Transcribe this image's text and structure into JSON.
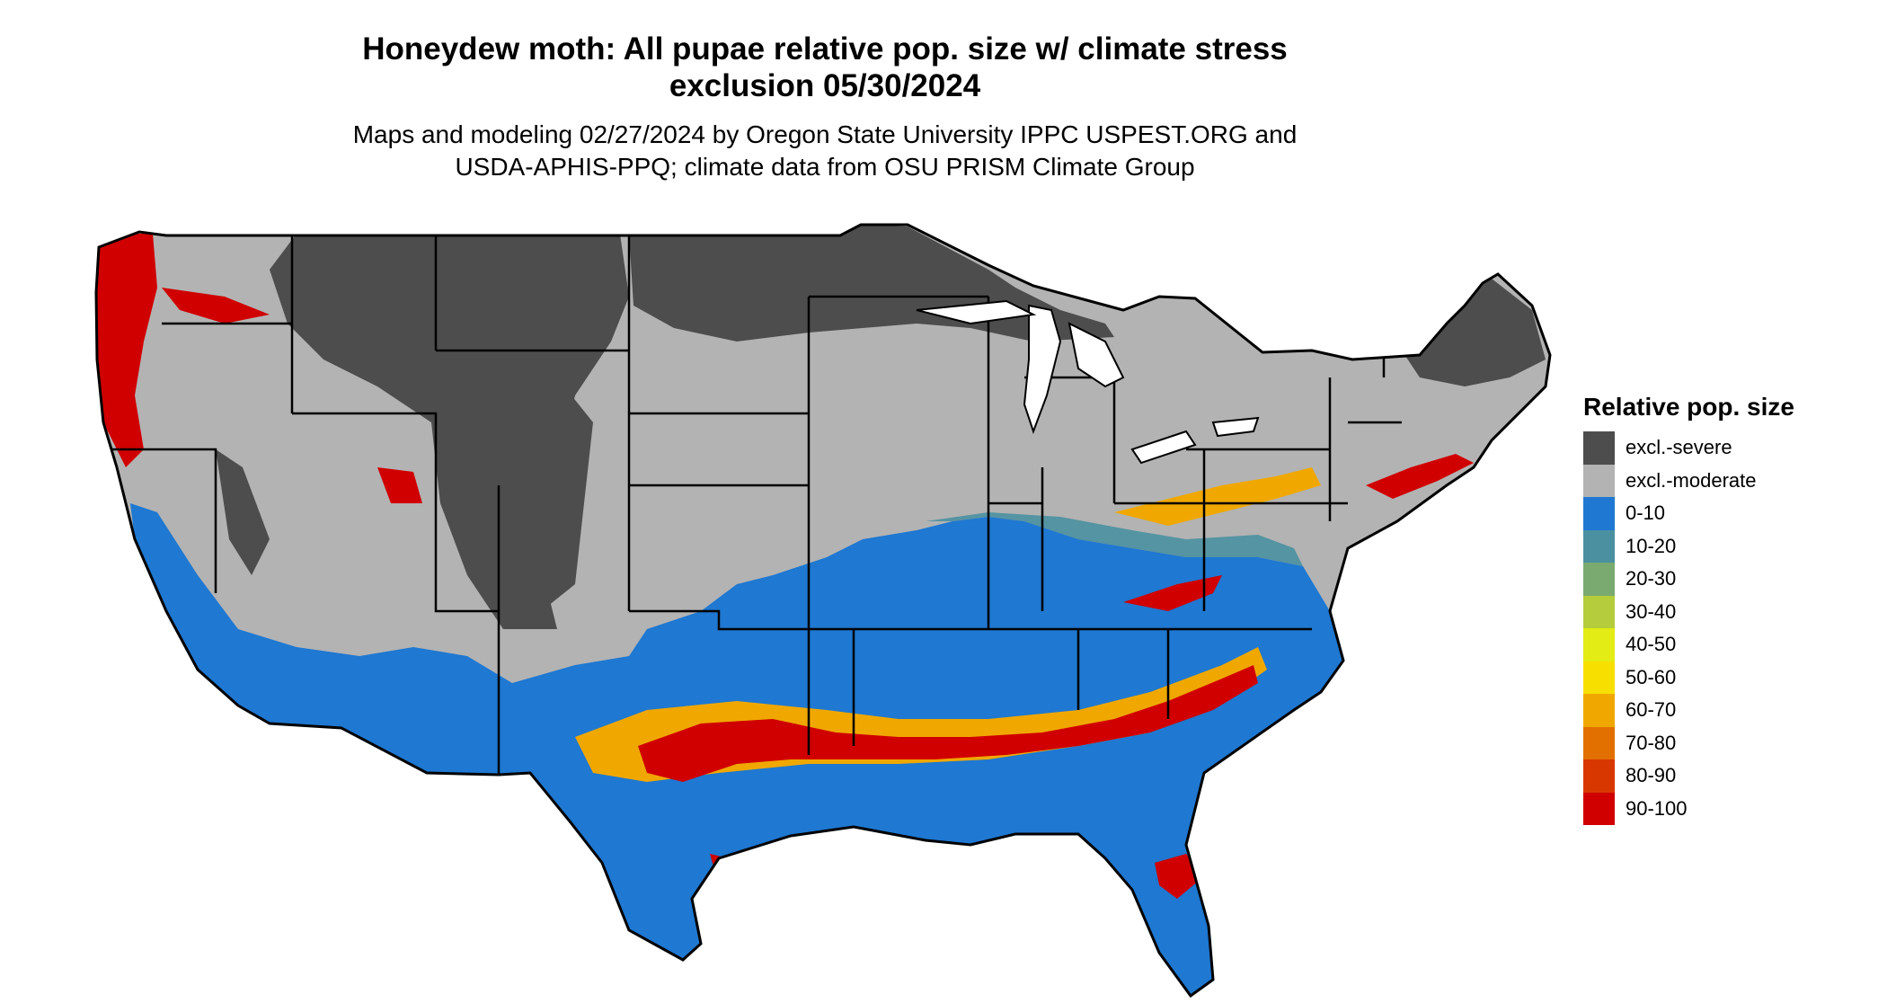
{
  "title": {
    "line1": "Honeydew moth: All pupae relative pop. size w/ climate stress",
    "line2": "exclusion 05/30/2024"
  },
  "subtitle": {
    "line1": "Maps and modeling 02/27/2024 by Oregon State University IPPC USPEST.ORG and",
    "line2": "USDA-APHIS-PPQ; climate data from OSU PRISM Climate Group"
  },
  "legend": {
    "title": "Relative pop. size",
    "items": [
      {
        "label": "excl.-severe",
        "color": "#4d4d4d"
      },
      {
        "label": "excl.-moderate",
        "color": "#b3b3b3"
      },
      {
        "label": "0-10",
        "color": "#1f78d1"
      },
      {
        "label": "10-20",
        "color": "#4a90a0"
      },
      {
        "label": "20-30",
        "color": "#7aaa70"
      },
      {
        "label": "30-40",
        "color": "#b5cc3c"
      },
      {
        "label": "40-50",
        "color": "#e3ec14"
      },
      {
        "label": "50-60",
        "color": "#f7e000"
      },
      {
        "label": "60-70",
        "color": "#f0a800"
      },
      {
        "label": "70-80",
        "color": "#e27000"
      },
      {
        "label": "80-90",
        "color": "#d83800"
      },
      {
        "label": "90-100",
        "color": "#d00000"
      }
    ]
  }
}
